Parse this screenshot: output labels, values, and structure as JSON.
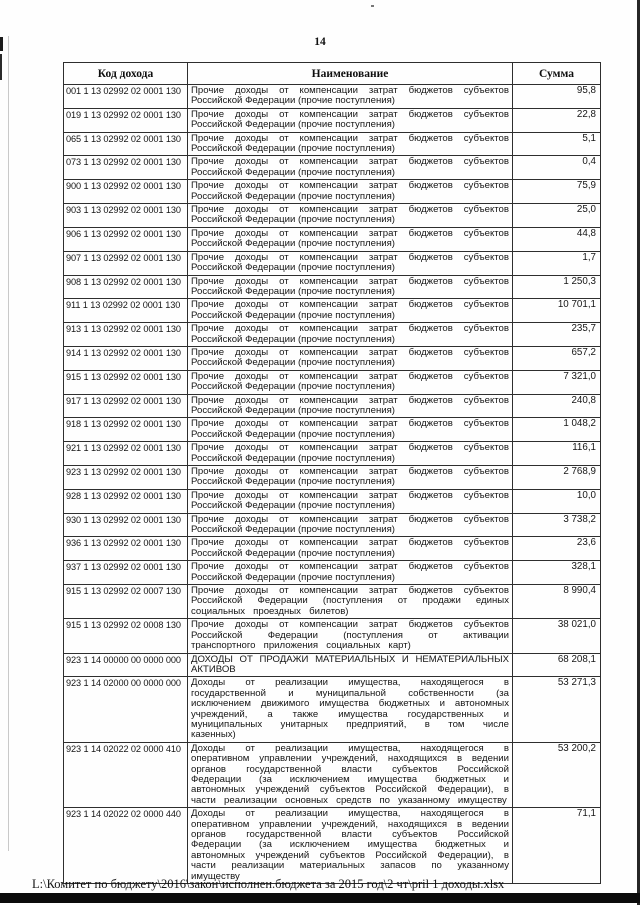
{
  "page": {
    "number": "14",
    "footer_path": "L:\\Комитет по бюджету\\2016\\закон\\исполнен.бюджета за 2015 год\\2 чт\\pril 1 доходы.xlsx"
  },
  "colors": {
    "ink": "#161616",
    "paper": "#fefefe",
    "scan_artifact": "#0b0b0b"
  },
  "table": {
    "columns": [
      "Код дохода",
      "Наименование",
      "Сумма"
    ],
    "rows": [
      {
        "code": "001 1 13 02992 02 0001 130",
        "name": "Прочие доходы от компенсации затрат бюджетов субъектов Российской Федерации (прочие поступления)",
        "sum": "95,8"
      },
      {
        "code": "019 1 13 02992 02 0001 130",
        "name": "Прочие доходы от компенсации затрат бюджетов субъектов Российской Федерации (прочие поступления)",
        "sum": "22,8"
      },
      {
        "code": "065 1 13 02992 02 0001 130",
        "name": "Прочие доходы от компенсации затрат бюджетов субъектов Российской Федерации (прочие поступления)",
        "sum": "5,1"
      },
      {
        "code": "073 1 13 02992 02 0001 130",
        "name": "Прочие доходы от компенсации затрат бюджетов субъектов Российской Федерации (прочие поступления)",
        "sum": "0,4"
      },
      {
        "code": "900 1 13 02992 02 0001 130",
        "name": "Прочие доходы от компенсации затрат бюджетов субъектов Российской Федерации (прочие поступления)",
        "sum": "75,9"
      },
      {
        "code": "903 1 13 02992 02 0001 130",
        "name": "Прочие доходы от компенсации затрат бюджетов субъектов Российской Федерации (прочие поступления)",
        "sum": "25,0"
      },
      {
        "code": "906 1 13 02992 02 0001 130",
        "name": "Прочие доходы от компенсации затрат бюджетов субъектов Российской Федерации (прочие поступления)",
        "sum": "44,8"
      },
      {
        "code": "907 1 13 02992 02 0001 130",
        "name": "Прочие доходы от компенсации затрат бюджетов субъектов Российской Федерации (прочие поступления)",
        "sum": "1,7"
      },
      {
        "code": "908 1 13 02992 02 0001 130",
        "name": "Прочие доходы от компенсации затрат бюджетов субъектов Российской Федерации (прочие поступления)",
        "sum": "1 250,3"
      },
      {
        "code": "911 1 13 02992 02 0001 130",
        "name": "Прочие доходы от компенсации затрат бюджетов субъектов Российской Федерации (прочие поступления)",
        "sum": "10 701,1"
      },
      {
        "code": "913 1 13 02992 02 0001 130",
        "name": "Прочие доходы от компенсации затрат бюджетов субъектов Российской Федерации (прочие поступления)",
        "sum": "235,7"
      },
      {
        "code": "914 1 13 02992 02 0001 130",
        "name": "Прочие доходы от компенсации затрат бюджетов субъектов Российской Федерации (прочие поступления)",
        "sum": "657,2"
      },
      {
        "code": "915 1 13 02992 02 0001 130",
        "name": "Прочие доходы от компенсации затрат бюджетов субъектов Российской Федерации (прочие поступления)",
        "sum": "7 321,0"
      },
      {
        "code": "917 1 13 02992 02 0001 130",
        "name": "Прочие доходы от компенсации затрат бюджетов субъектов Российской Федерации (прочие поступления)",
        "sum": "240,8"
      },
      {
        "code": "918 1 13 02992 02 0001 130",
        "name": "Прочие доходы от компенсации затрат бюджетов субъектов Российской Федерации (прочие поступления)",
        "sum": "1 048,2"
      },
      {
        "code": "921 1 13 02992 02 0001 130",
        "name": "Прочие доходы от компенсации затрат бюджетов субъектов Российской Федерации (прочие поступления)",
        "sum": "116,1"
      },
      {
        "code": "923 1 13 02992 02 0001 130",
        "name": "Прочие доходы от компенсации затрат бюджетов субъектов Российской Федерации (прочие поступления)",
        "sum": "2 768,9"
      },
      {
        "code": "928 1 13 02992 02 0001 130",
        "name": "Прочие доходы от компенсации затрат бюджетов субъектов Российской Федерации (прочие поступления)",
        "sum": "10,0"
      },
      {
        "code": "930 1 13 02992 02 0001 130",
        "name": "Прочие доходы от компенсации затрат бюджетов субъектов Российской Федерации (прочие поступления)",
        "sum": "3 738,2"
      },
      {
        "code": "936 1 13 02992 02 0001 130",
        "name": "Прочие доходы от компенсации затрат бюджетов субъектов Российской Федерации (прочие поступления)",
        "sum": "23,6"
      },
      {
        "code": "937 1 13 02992 02 0001 130",
        "name": "Прочие доходы от компенсации затрат бюджетов субъектов Российской Федерации (прочие поступления)",
        "sum": "328,1"
      },
      {
        "code": "915 1 13 02992 02 0007 130",
        "name": "Прочие доходы от компенсации затрат бюджетов субъектов Российской Федерации (поступления от продажи единых социальных проездных билетов)",
        "sum": "8 990,4"
      },
      {
        "code": "915 1 13 02992 02 0008 130",
        "name": "Прочие доходы от компенсации затрат бюджетов субъектов Российской Федерации (поступления от активации транспортного приложения социальных карт)",
        "sum": "38 021,0"
      },
      {
        "code": "923 1 14 00000 00 0000 000",
        "name": "ДОХОДЫ ОТ ПРОДАЖИ МАТЕРИАЛЬНЫХ И НЕМАТЕРИАЛЬНЫХ АКТИВОВ",
        "sum": "68 208,1"
      },
      {
        "code": "923 1 14 02000 00 0000 000",
        "name": "Доходы от реализации имущества, находящегося в государственной и муниципальной собственности (за исключением движимого имущества бюджетных и автономных учреждений, а также имущества государственных и муниципальных унитарных предприятий, в том числе казенных)",
        "sum": "53 271,3"
      },
      {
        "code": "923 1 14 02022 02 0000 410",
        "name": "Доходы от реализации имущества, находящегося в оперативном управлении учреждений, находящихся в ведении органов государственной власти субъектов Российской Федерации (за исключением имущества бюджетных и автономных учреждений субъектов Российской Федерации), в части реализации основных средств по указанному имуществу",
        "sum": "53 200,2"
      },
      {
        "code": "923 1 14 02022 02 0000 440",
        "name": "Доходы от реализации имущества, находящегося в оперативном управлении учреждений, находящихся в ведении органов государственной власти субъектов Российской Федерации (за исключением имущества бюджетных и автономных учреждений субъектов Российской Федерации), в части реализации материальных запасов по указанному имуществу",
        "sum": "71,1"
      }
    ]
  }
}
